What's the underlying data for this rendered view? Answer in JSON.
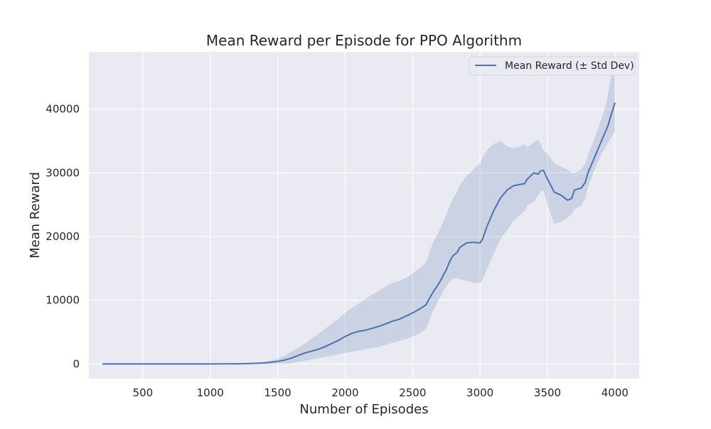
{
  "chart_data": {
    "type": "line",
    "title": "Mean Reward per Episode for PPO Algorithm",
    "xlabel": "Number of Episodes",
    "ylabel": "Mean Reward",
    "xlim": [
      100,
      4180
    ],
    "ylim": [
      -2300,
      49000
    ],
    "xticks": [
      500,
      1000,
      1500,
      2000,
      2500,
      3000,
      3500,
      4000
    ],
    "yticks": [
      0,
      10000,
      20000,
      30000,
      40000
    ],
    "grid": true,
    "legend_position": "top-right",
    "colors": {
      "line": "#4c72b0",
      "band": "#4c72b0",
      "background": "#eaeaf2",
      "grid": "#ffffff"
    },
    "series": [
      {
        "name": "Mean Reward (± Std Dev)",
        "x": [
          200,
          400,
          600,
          800,
          1000,
          1100,
          1200,
          1300,
          1400,
          1450,
          1500,
          1550,
          1600,
          1650,
          1700,
          1750,
          1800,
          1850,
          1900,
          1950,
          2000,
          2050,
          2100,
          2150,
          2200,
          2250,
          2300,
          2350,
          2400,
          2450,
          2500,
          2550,
          2600,
          2625,
          2650,
          2700,
          2750,
          2780,
          2800,
          2830,
          2850,
          2900,
          2950,
          3000,
          3020,
          3050,
          3100,
          3150,
          3200,
          3250,
          3300,
          3330,
          3350,
          3400,
          3430,
          3450,
          3470,
          3500,
          3550,
          3600,
          3650,
          3680,
          3700,
          3750,
          3780,
          3800,
          3850,
          3900,
          3930,
          3950,
          3970,
          4000
        ],
        "mean": [
          0,
          0,
          0,
          0,
          0,
          10,
          20,
          60,
          150,
          250,
          400,
          600,
          900,
          1300,
          1700,
          2000,
          2300,
          2700,
          3200,
          3700,
          4300,
          4800,
          5100,
          5300,
          5600,
          5900,
          6300,
          6700,
          7000,
          7500,
          8000,
          8600,
          9300,
          10300,
          11200,
          12800,
          14800,
          16300,
          17000,
          17500,
          18300,
          19000,
          19100,
          19000,
          19600,
          21500,
          24000,
          26000,
          27300,
          28000,
          28200,
          28300,
          29000,
          30000,
          29800,
          30300,
          30400,
          29000,
          27000,
          26500,
          25700,
          26000,
          27300,
          27600,
          28500,
          30000,
          32500,
          35000,
          36500,
          37500,
          39000,
          41000
        ],
        "lower": [
          0,
          0,
          0,
          0,
          0,
          0,
          0,
          0,
          0,
          0,
          0,
          0,
          100,
          300,
          500,
          700,
          900,
          1100,
          1300,
          1500,
          1700,
          1900,
          2100,
          2300,
          2500,
          2700,
          3000,
          3300,
          3600,
          3900,
          4300,
          4800,
          5500,
          6800,
          8300,
          10300,
          12200,
          13000,
          13400,
          13500,
          13300,
          13000,
          12800,
          12700,
          13200,
          14800,
          17200,
          19500,
          21000,
          22500,
          23500,
          24000,
          24800,
          25500,
          26500,
          27000,
          27300,
          25000,
          22000,
          22300,
          23000,
          23500,
          24300,
          24800,
          26000,
          27800,
          30500,
          33000,
          34000,
          34800,
          35500,
          36500
        ],
        "upper": [
          0,
          0,
          0,
          0,
          0,
          30,
          60,
          150,
          350,
          550,
          800,
          1300,
          1900,
          2500,
          3200,
          4000,
          4700,
          5500,
          6300,
          7100,
          8000,
          8800,
          9500,
          10200,
          10900,
          11500,
          12200,
          12700,
          13000,
          13500,
          14200,
          15000,
          16000,
          17500,
          19000,
          21000,
          23500,
          25000,
          26000,
          27000,
          28000,
          29500,
          30500,
          31500,
          32500,
          33500,
          34500,
          35000,
          34200,
          33800,
          34200,
          34500,
          34000,
          34800,
          35200,
          34500,
          33500,
          33000,
          31500,
          31000,
          30500,
          30000,
          30000,
          30500,
          31500,
          32800,
          35500,
          38500,
          40500,
          42500,
          45000,
          48000
        ]
      }
    ]
  }
}
